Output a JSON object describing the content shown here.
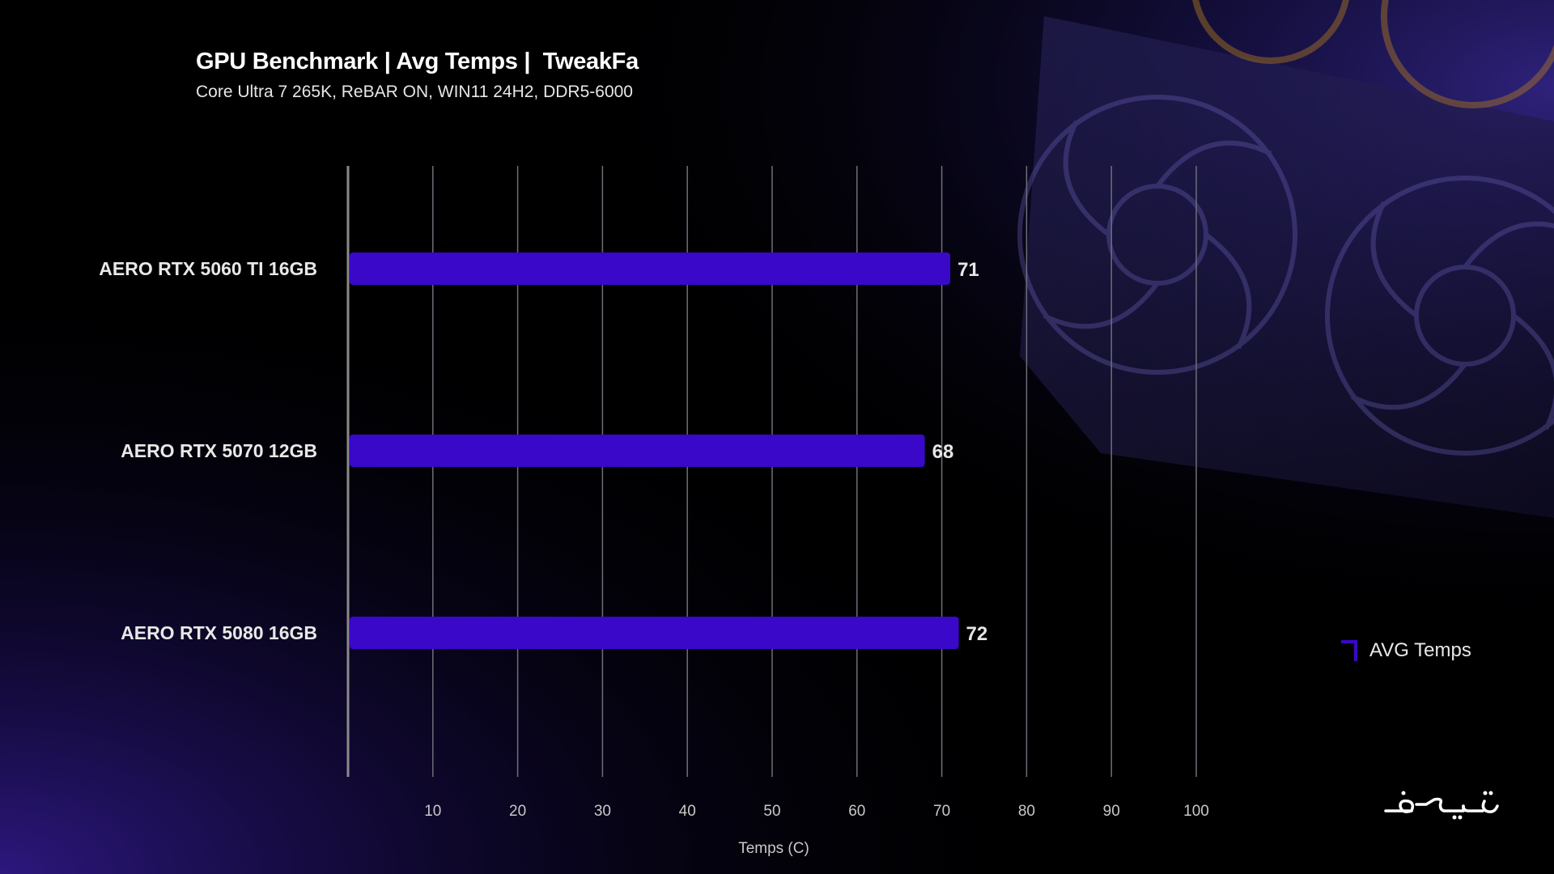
{
  "colors": {
    "bar": "#3a08c8",
    "bar_label": "#e6e6e6",
    "grid": "#6e6e78",
    "axis": "#8a8a8a",
    "tick": "#c8c8c8",
    "background": "#000000",
    "accent_glow": "#3b1fa8"
  },
  "header": {
    "title": "GPU Benchmark | Avg Temps |  TweakFa",
    "subtitle": "Core Ultra 7 265K, ReBAR ON, WIN11 24H2, DDR5-6000"
  },
  "legend": {
    "label": "AVG Temps",
    "icon": "bracket-corner-icon",
    "placement": "right"
  },
  "brand": {
    "logo_text": "تویک فا",
    "icon": "tweakfa-logo"
  },
  "chart_data": {
    "type": "bar",
    "orientation": "horizontal",
    "title": "GPU Benchmark | Avg Temps |  TweakFa",
    "subtitle": "Core Ultra 7 265K, ReBAR ON, WIN11 24H2, DDR5-6000",
    "xlabel": "Temps (C)",
    "ylabel": "",
    "categories": [
      "AERO RTX 5060 TI 16GB",
      "AERO RTX 5070 12GB",
      "AERO RTX 5080 16GB"
    ],
    "series": [
      {
        "name": "AVG Temps",
        "values": [
          71,
          68,
          72
        ]
      }
    ],
    "xlim": [
      0,
      100
    ],
    "xticks": [
      10,
      20,
      30,
      40,
      50,
      60,
      70,
      80,
      90,
      100
    ],
    "grid": true,
    "legend": "right"
  }
}
